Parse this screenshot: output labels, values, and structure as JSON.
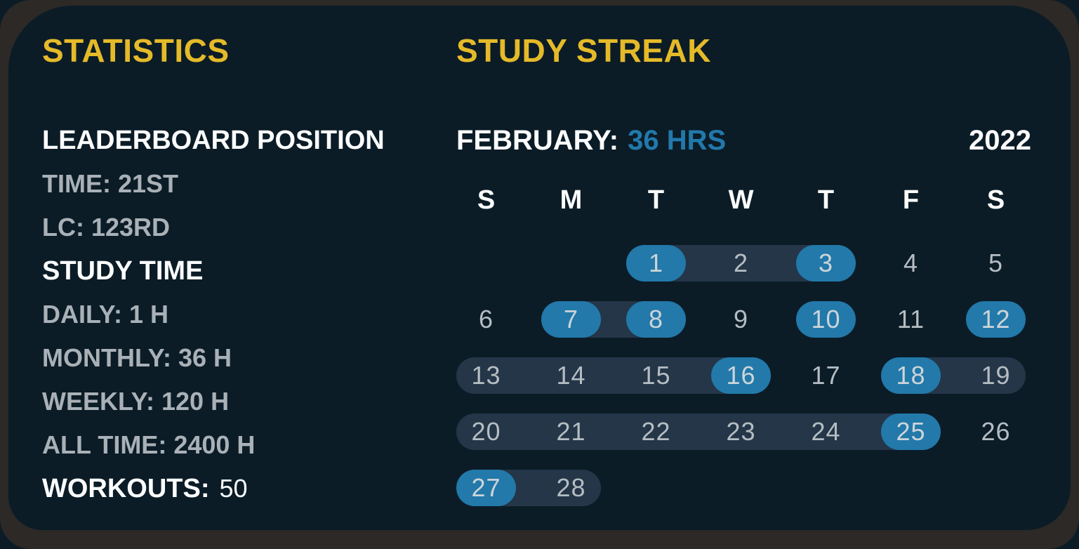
{
  "colors": {
    "frame_bg": "#2c2926",
    "card_bg": "#0b1c27",
    "accent_yellow": "#e5ba29",
    "accent_blue": "#2279aa",
    "streak_pill": "#243648",
    "text_white": "#fbfcfc",
    "text_gray": "#a9b1b7",
    "day_text": "#b5bdc3",
    "day_text_bright": "#ccd4d9"
  },
  "statistics": {
    "title": "STATISTICS",
    "leaderboard_heading": "LEADERBOARD POSITION",
    "leaderboard_time": "TIME: 21ST",
    "leaderboard_lc": "LC: 123RD",
    "study_time_heading": "STUDY TIME",
    "daily": "DAILY: 1 H",
    "monthly": "MONTHLY: 36 H",
    "weekly": "WEEKLY: 120 H",
    "all_time": "ALL TIME: 2400 H",
    "workouts_label": "WORKOUTS:",
    "workouts_value": "50"
  },
  "study_streak": {
    "title": "STUDY STREAK",
    "month_label": "FEBRUARY:",
    "month_hours": "36 HRS",
    "year": "2022",
    "calendar": {
      "weekday_headers": [
        "S",
        "M",
        "T",
        "W",
        "T",
        "F",
        "S"
      ],
      "studied_days": [
        1,
        3,
        7,
        8,
        10,
        12,
        16,
        18,
        25,
        27
      ],
      "streak_ranges": [
        [
          1,
          3
        ],
        [
          7,
          8
        ],
        [
          13,
          16
        ],
        [
          18,
          19
        ],
        [
          20,
          25
        ],
        [
          27,
          28
        ]
      ],
      "weeks": [
        [
          null,
          null,
          {
            "day": "1",
            "studied": true,
            "range": "start"
          },
          {
            "day": "2",
            "studied": false,
            "range": "mid"
          },
          {
            "day": "3",
            "studied": true,
            "range": "end"
          },
          {
            "day": "4",
            "studied": false,
            "range": null
          },
          {
            "day": "5",
            "studied": false,
            "range": null
          }
        ],
        [
          {
            "day": "6",
            "studied": false,
            "range": null
          },
          {
            "day": "7",
            "studied": true,
            "range": "start"
          },
          {
            "day": "8",
            "studied": true,
            "range": "end"
          },
          {
            "day": "9",
            "studied": false,
            "range": null
          },
          {
            "day": "10",
            "studied": true,
            "range": null
          },
          {
            "day": "11",
            "studied": false,
            "range": null
          },
          {
            "day": "12",
            "studied": true,
            "range": null
          }
        ],
        [
          {
            "day": "13",
            "studied": false,
            "range": "start"
          },
          {
            "day": "14",
            "studied": false,
            "range": "mid"
          },
          {
            "day": "15",
            "studied": false,
            "range": "mid"
          },
          {
            "day": "16",
            "studied": true,
            "range": "end"
          },
          {
            "day": "17",
            "studied": false,
            "range": null
          },
          {
            "day": "18",
            "studied": true,
            "range": "start"
          },
          {
            "day": "19",
            "studied": false,
            "range": "end"
          }
        ],
        [
          {
            "day": "20",
            "studied": false,
            "range": "start"
          },
          {
            "day": "21",
            "studied": false,
            "range": "mid"
          },
          {
            "day": "22",
            "studied": false,
            "range": "mid"
          },
          {
            "day": "23",
            "studied": false,
            "range": "mid"
          },
          {
            "day": "24",
            "studied": false,
            "range": "mid"
          },
          {
            "day": "25",
            "studied": true,
            "range": "end"
          },
          {
            "day": "26",
            "studied": false,
            "range": null
          }
        ],
        [
          {
            "day": "27",
            "studied": true,
            "range": "start"
          },
          {
            "day": "28",
            "studied": false,
            "range": "end"
          },
          null,
          null,
          null,
          null,
          null
        ]
      ]
    }
  }
}
